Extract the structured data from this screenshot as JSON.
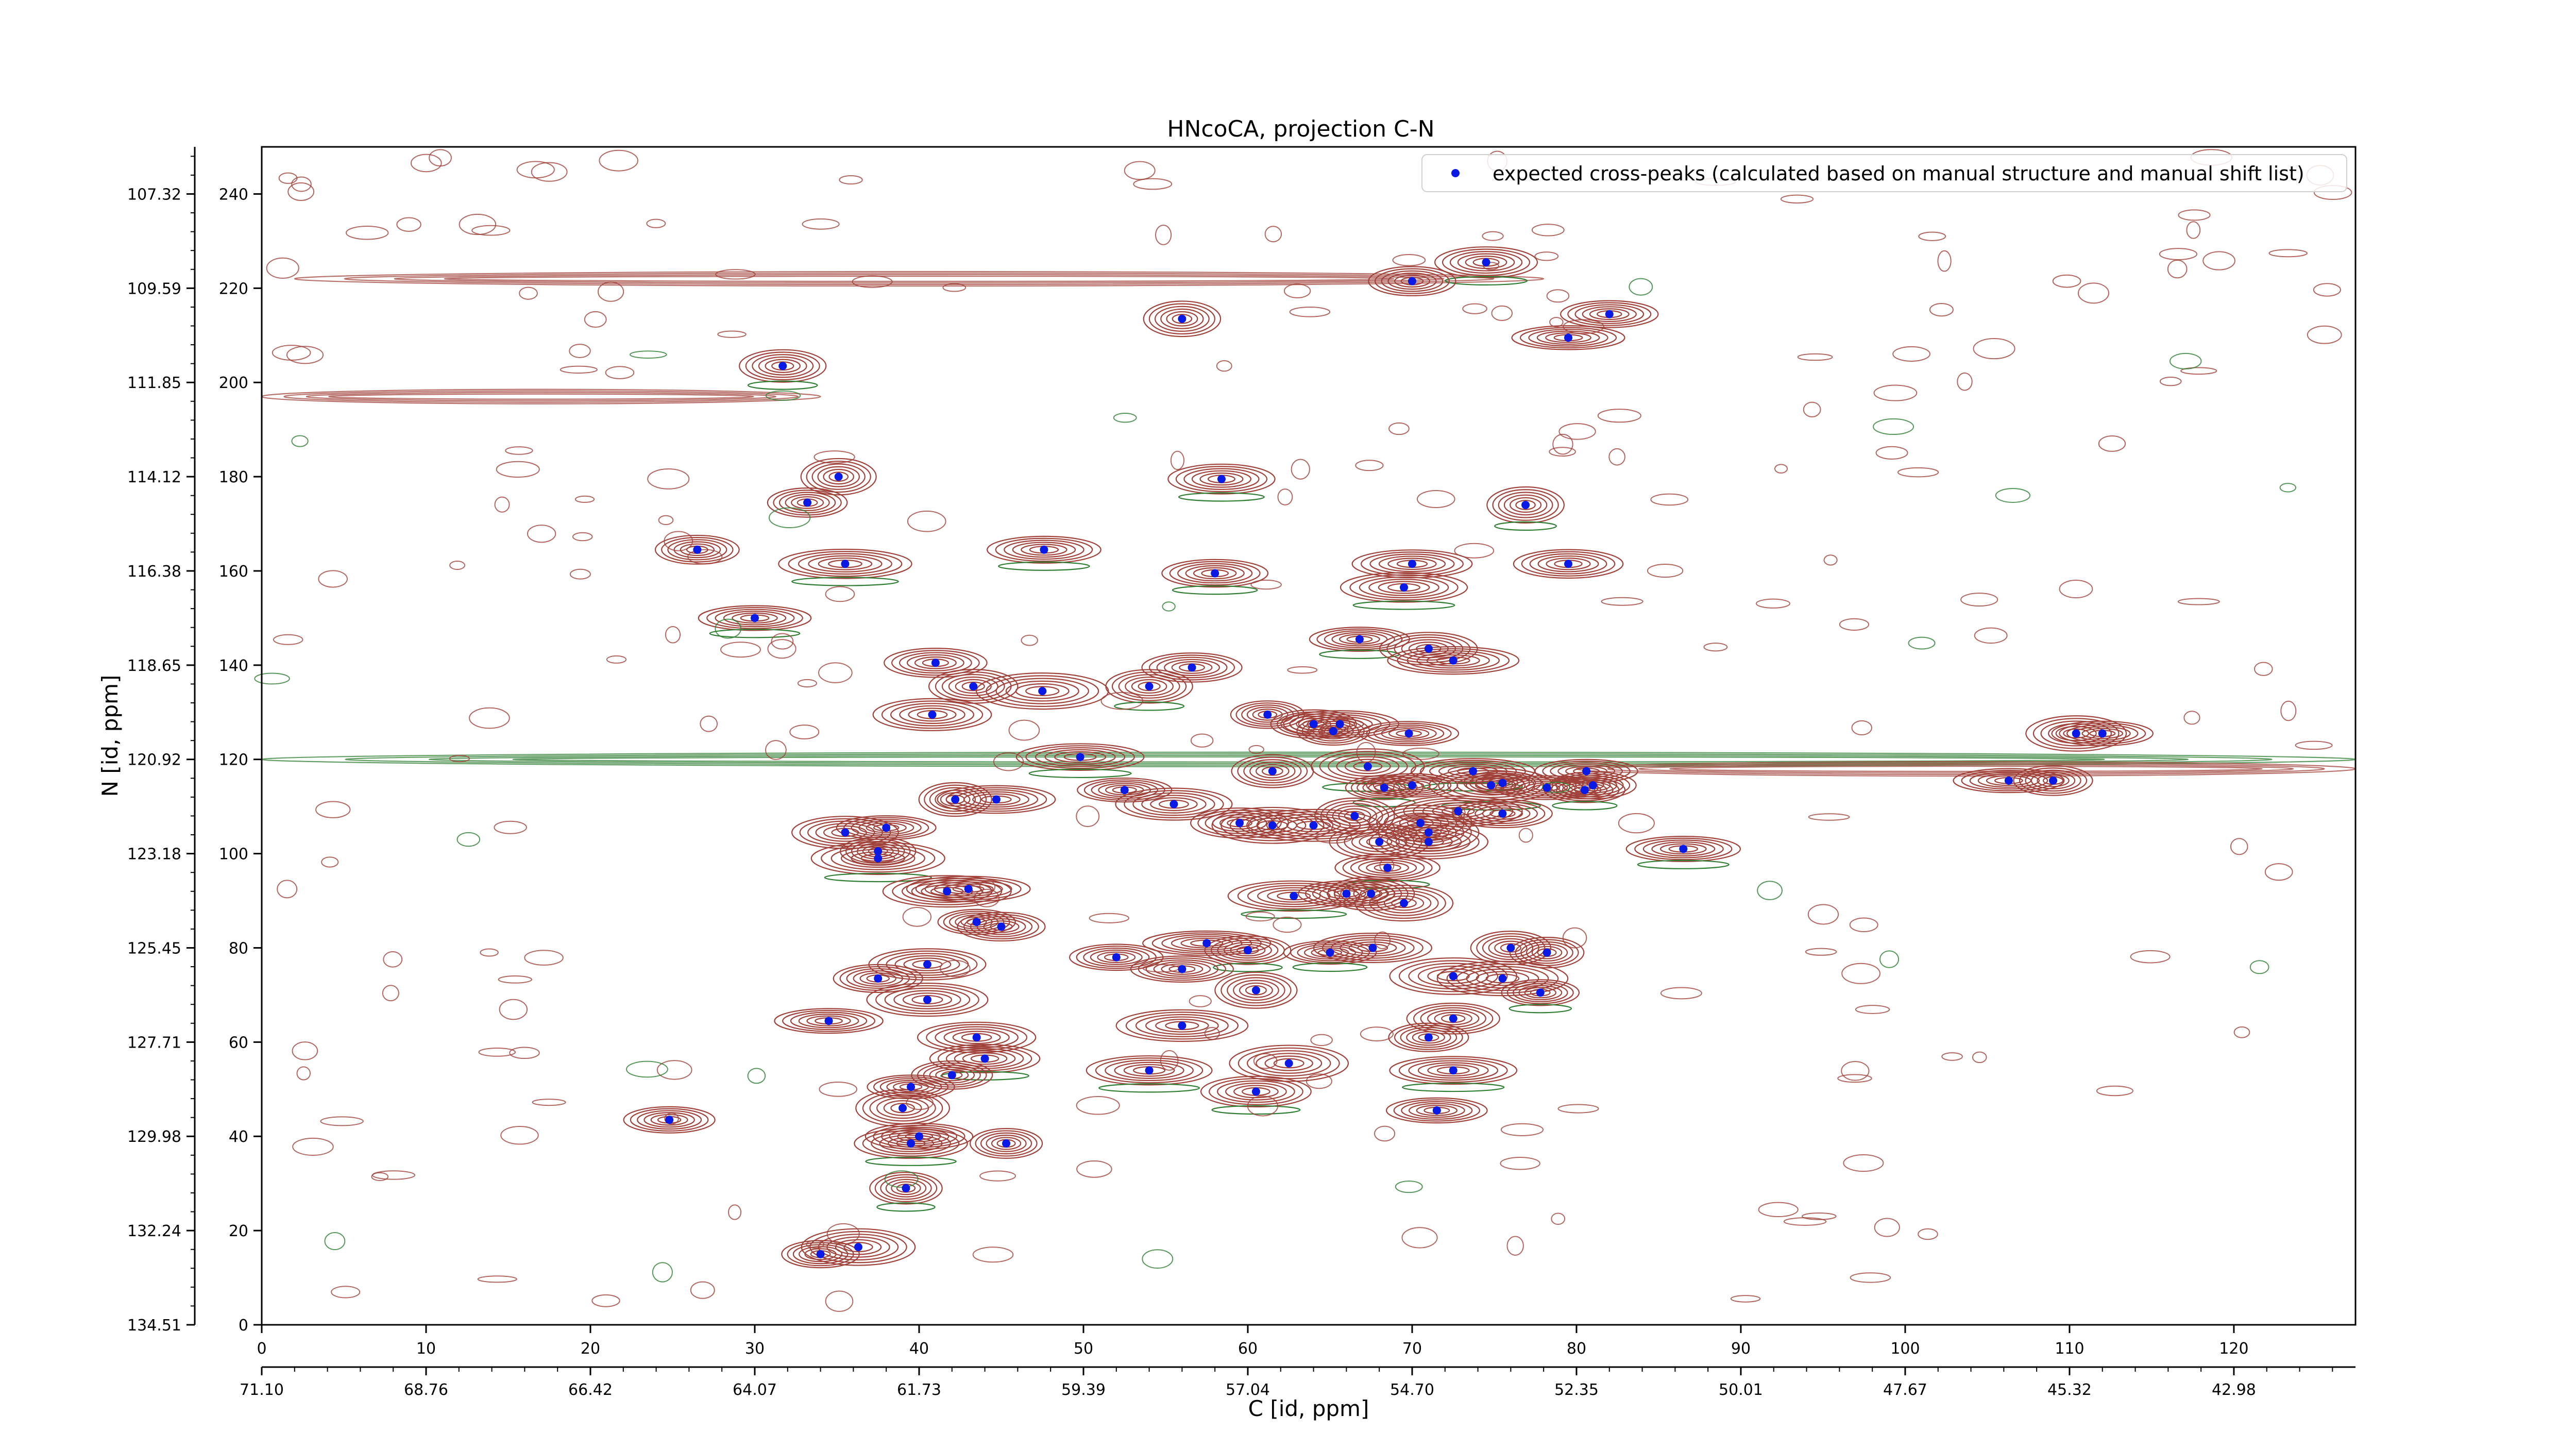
{
  "chart_data": {
    "type": "scatter",
    "title": "HNcoCA, projection C-N",
    "xlabel": "C [id, ppm]",
    "ylabel": "N [id, ppm]",
    "x_index_ticks": [
      "0",
      "10",
      "20",
      "30",
      "40",
      "50",
      "60",
      "70",
      "80",
      "90",
      "100",
      "110",
      "120"
    ],
    "x_ppm_ticks": [
      "71.10",
      "68.76",
      "66.42",
      "64.07",
      "61.73",
      "59.39",
      "57.04",
      "54.70",
      "52.35",
      "50.01",
      "47.67",
      "45.32",
      "42.98"
    ],
    "y_index_ticks": [
      "0",
      "20",
      "40",
      "60",
      "80",
      "100",
      "120",
      "140",
      "160",
      "180",
      "200",
      "220",
      "240"
    ],
    "y_ppm_ticks": [
      "134.51",
      "132.24",
      "129.98",
      "127.71",
      "125.45",
      "123.18",
      "120.92",
      "118.65",
      "116.38",
      "114.12",
      "111.85",
      "109.59",
      "107.32"
    ],
    "xlim": [
      0,
      127.4
    ],
    "ylim": [
      0,
      250
    ],
    "legend_label": "expected cross-peaks (calculated based on manual structure and manual shift list)",
    "legend_position": "top-right",
    "colors": {
      "positive": "#a0413a",
      "negative": "#2e7d32",
      "marker": "#0a1ae6"
    },
    "series": [
      {
        "name": "expected cross-peaks (calculated based on manual structure and manual shift list)",
        "points": [
          [
            74.5,
            225.5
          ],
          [
            70.0,
            221.5
          ],
          [
            56.0,
            213.5
          ],
          [
            82.0,
            214.5
          ],
          [
            79.5,
            209.5
          ],
          [
            31.7,
            203.5
          ],
          [
            58.4,
            179.5
          ],
          [
            35.1,
            180.0
          ],
          [
            33.2,
            174.5
          ],
          [
            26.5,
            164.5
          ],
          [
            47.6,
            164.5
          ],
          [
            35.5,
            161.5
          ],
          [
            58.0,
            159.5
          ],
          [
            70.0,
            161.5
          ],
          [
            76.9,
            174.0
          ],
          [
            69.5,
            156.5
          ],
          [
            79.5,
            161.5
          ],
          [
            30.0,
            150.0
          ],
          [
            66.8,
            145.5
          ],
          [
            71.0,
            143.5
          ],
          [
            72.5,
            141.0
          ],
          [
            41.0,
            140.5
          ],
          [
            56.6,
            139.5
          ],
          [
            54.0,
            135.5
          ],
          [
            43.3,
            135.5
          ],
          [
            47.5,
            134.5
          ],
          [
            40.8,
            129.5
          ],
          [
            61.2,
            129.5
          ],
          [
            64.0,
            127.5
          ],
          [
            65.6,
            127.5
          ],
          [
            65.2,
            126.0
          ],
          [
            69.8,
            125.5
          ],
          [
            110.4,
            125.5
          ],
          [
            112.0,
            125.5
          ],
          [
            49.8,
            120.5
          ],
          [
            61.5,
            117.5
          ],
          [
            67.3,
            118.5
          ],
          [
            73.7,
            117.5
          ],
          [
            75.5,
            115.0
          ],
          [
            74.8,
            114.5
          ],
          [
            80.6,
            117.5
          ],
          [
            78.2,
            114.0
          ],
          [
            81.0,
            114.5
          ],
          [
            80.5,
            113.5
          ],
          [
            106.3,
            115.5
          ],
          [
            109.0,
            115.5
          ],
          [
            42.2,
            111.5
          ],
          [
            44.7,
            111.5
          ],
          [
            55.5,
            110.5
          ],
          [
            52.5,
            113.5
          ],
          [
            68.3,
            114.0
          ],
          [
            70.0,
            114.5
          ],
          [
            75.5,
            108.5
          ],
          [
            72.8,
            109.0
          ],
          [
            66.5,
            108.0
          ],
          [
            70.5,
            106.5
          ],
          [
            71.0,
            104.5
          ],
          [
            59.5,
            106.5
          ],
          [
            61.5,
            106.0
          ],
          [
            64.0,
            106.0
          ],
          [
            38.0,
            105.5
          ],
          [
            35.5,
            104.5
          ],
          [
            71.0,
            102.5
          ],
          [
            68.0,
            102.5
          ],
          [
            37.5,
            100.5
          ],
          [
            37.5,
            99.0
          ],
          [
            86.5,
            101.0
          ],
          [
            68.5,
            97.0
          ],
          [
            62.8,
            91.0
          ],
          [
            66.0,
            91.5
          ],
          [
            67.5,
            91.5
          ],
          [
            41.7,
            92.0
          ],
          [
            43.0,
            92.5
          ],
          [
            69.5,
            89.5
          ],
          [
            43.5,
            85.5
          ],
          [
            45.0,
            84.5
          ],
          [
            65.0,
            79.0
          ],
          [
            67.6,
            80.0
          ],
          [
            57.5,
            81.0
          ],
          [
            60.0,
            79.5
          ],
          [
            76.0,
            80.0
          ],
          [
            78.2,
            79.0
          ],
          [
            52.0,
            78.0
          ],
          [
            56.0,
            75.5
          ],
          [
            72.5,
            74.0
          ],
          [
            75.5,
            73.5
          ],
          [
            77.8,
            70.5
          ],
          [
            40.5,
            76.5
          ],
          [
            37.5,
            73.5
          ],
          [
            60.5,
            71.0
          ],
          [
            40.5,
            69.0
          ],
          [
            34.5,
            64.5
          ],
          [
            56.0,
            63.5
          ],
          [
            72.5,
            65.0
          ],
          [
            71.0,
            61.0
          ],
          [
            43.5,
            61.0
          ],
          [
            44.0,
            56.5
          ],
          [
            42.0,
            53.0
          ],
          [
            62.5,
            55.5
          ],
          [
            54.0,
            54.0
          ],
          [
            72.5,
            54.0
          ],
          [
            39.5,
            50.5
          ],
          [
            39.0,
            46.0
          ],
          [
            60.5,
            49.5
          ],
          [
            71.5,
            45.5
          ],
          [
            24.8,
            43.5
          ],
          [
            40.0,
            40.0
          ],
          [
            39.5,
            38.5
          ],
          [
            45.3,
            38.5
          ],
          [
            39.2,
            29.0
          ],
          [
            34.0,
            15.0
          ],
          [
            36.3,
            16.5
          ]
        ]
      }
    ]
  }
}
